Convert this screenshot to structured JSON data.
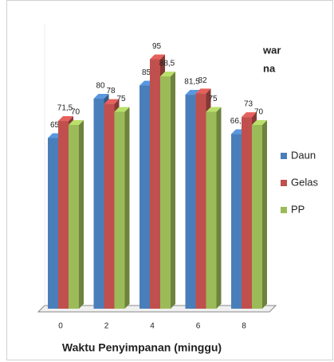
{
  "chart_data": {
    "type": "bar3d",
    "title": [
      "war",
      "na"
    ],
    "x_label": "Waktu Penyimpanan (minggu)",
    "categories": [
      "0",
      "2",
      "4",
      "6",
      "8"
    ],
    "ylim": [
      0,
      100
    ],
    "series": [
      {
        "name": "Daun",
        "color": "#4a7ebb",
        "values": [
          65,
          80,
          85,
          81.5,
          66.5
        ],
        "value_labels": [
          "65",
          "80",
          "85",
          "81,5",
          "66,5"
        ]
      },
      {
        "name": "Gelas",
        "color": "#c0504d",
        "values": [
          71.5,
          78,
          95,
          82,
          73
        ],
        "value_labels": [
          "71,5",
          "78",
          "95",
          "82",
          "73"
        ]
      },
      {
        "name": "PP",
        "color": "#9bbb59",
        "values": [
          70,
          75,
          88.5,
          75,
          70
        ],
        "value_labels": [
          "70",
          "75",
          "88,5",
          "75",
          "70"
        ]
      }
    ],
    "legend": "right"
  }
}
